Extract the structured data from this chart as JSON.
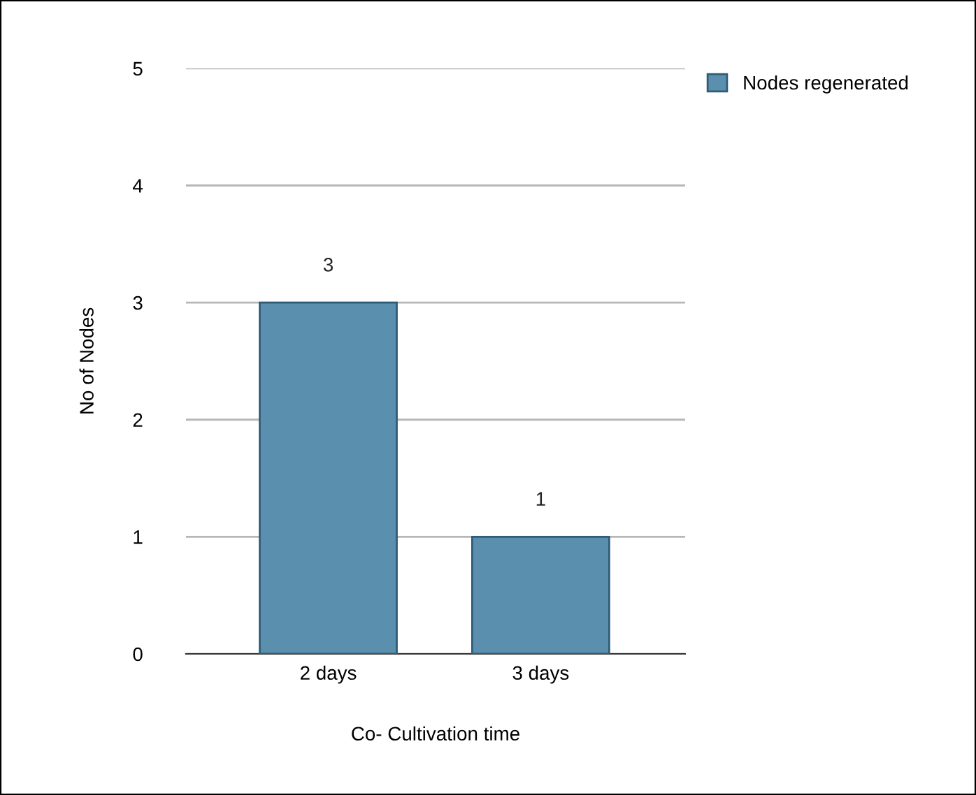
{
  "chart_data": {
    "type": "bar",
    "xlabel": "Co- Cultivation time",
    "ylabel": "No of Nodes",
    "categories": [
      "2 days",
      "3 days"
    ],
    "series": [
      {
        "name": "Nodes regenerated",
        "color": "#5a8fae",
        "values": [
          3,
          1
        ]
      }
    ],
    "ylim": [
      0,
      5
    ],
    "yticks": [
      0,
      1,
      2,
      3,
      4,
      5
    ],
    "grid": "y",
    "legend": "top right",
    "data_labels": true
  }
}
